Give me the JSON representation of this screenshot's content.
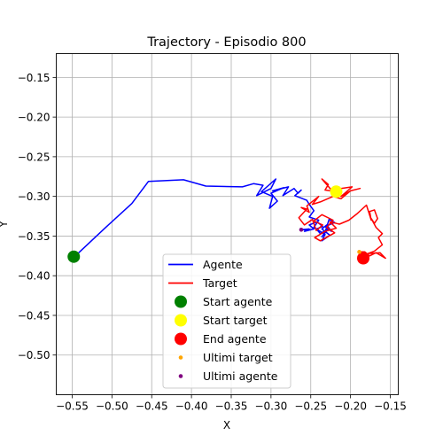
{
  "chart_data": {
    "type": "line",
    "title": "Trajectory - Episodio 800",
    "xlabel": "X",
    "ylabel": "Y",
    "xlim": [
      -0.57,
      -0.14
    ],
    "ylim": [
      -0.55,
      -0.12
    ],
    "xticks": [
      -0.55,
      -0.5,
      -0.45,
      -0.4,
      -0.35,
      -0.3,
      -0.25,
      -0.2,
      -0.15
    ],
    "xtick_labels": [
      "−0.55",
      "−0.50",
      "−0.45",
      "−0.40",
      "−0.35",
      "−0.30",
      "−0.25",
      "−0.20",
      "−0.15"
    ],
    "yticks": [
      -0.15,
      -0.2,
      -0.25,
      -0.3,
      -0.35,
      -0.4,
      -0.45,
      -0.5
    ],
    "ytick_labels": [
      "−0.15",
      "−0.20",
      "−0.25",
      "−0.30",
      "−0.35",
      "−0.40",
      "−0.45",
      "−0.50"
    ],
    "grid": true,
    "legend_position": "bottom-center",
    "series": [
      {
        "name": "Agente",
        "color": "#0000ff",
        "x": [
          -0.548,
          -0.51,
          -0.475,
          -0.454,
          -0.41,
          -0.382,
          -0.336,
          -0.322,
          -0.31,
          -0.318,
          -0.306,
          -0.3,
          -0.294,
          -0.312,
          -0.298,
          -0.302,
          -0.292,
          -0.3,
          -0.284,
          -0.298,
          -0.278,
          -0.285,
          -0.271,
          -0.266,
          -0.262,
          -0.27,
          -0.255,
          -0.252,
          -0.246,
          -0.252,
          -0.24,
          -0.246,
          -0.232,
          -0.236,
          -0.226,
          -0.236,
          -0.23,
          -0.224,
          -0.232,
          -0.22,
          -0.227,
          -0.232,
          -0.236,
          -0.228,
          -0.238,
          -0.243,
          -0.235,
          -0.242,
          -0.252,
          -0.246,
          -0.258,
          -0.252,
          -0.262
        ],
        "y": [
          -0.377,
          -0.341,
          -0.309,
          -0.281,
          -0.279,
          -0.287,
          -0.288,
          -0.284,
          -0.286,
          -0.299,
          -0.293,
          -0.29,
          -0.278,
          -0.294,
          -0.3,
          -0.315,
          -0.306,
          -0.296,
          -0.289,
          -0.293,
          -0.288,
          -0.299,
          -0.29,
          -0.296,
          -0.292,
          -0.299,
          -0.305,
          -0.31,
          -0.318,
          -0.326,
          -0.33,
          -0.339,
          -0.348,
          -0.356,
          -0.349,
          -0.341,
          -0.336,
          -0.344,
          -0.338,
          -0.333,
          -0.329,
          -0.345,
          -0.351,
          -0.341,
          -0.347,
          -0.341,
          -0.338,
          -0.332,
          -0.336,
          -0.341,
          -0.344,
          -0.341,
          -0.342
        ]
      },
      {
        "name": "Target",
        "color": "#ff0000",
        "x": [
          -0.218,
          -0.232,
          -0.228,
          -0.236,
          -0.224,
          -0.212,
          -0.198,
          -0.212,
          -0.2,
          -0.188,
          -0.2,
          -0.212,
          -0.222,
          -0.238,
          -0.248,
          -0.24,
          -0.255,
          -0.252,
          -0.262,
          -0.255,
          -0.265,
          -0.258,
          -0.248,
          -0.243,
          -0.235,
          -0.246,
          -0.236,
          -0.222,
          -0.23,
          -0.22,
          -0.238,
          -0.245,
          -0.232,
          -0.218,
          -0.226,
          -0.214,
          -0.202,
          -0.192,
          -0.18,
          -0.174,
          -0.176,
          -0.17,
          -0.166,
          -0.17,
          -0.174,
          -0.168,
          -0.16,
          -0.165,
          -0.16,
          -0.17,
          -0.178,
          -0.163,
          -0.156,
          -0.168,
          -0.176,
          -0.182,
          -0.188
        ],
        "y": [
          -0.294,
          -0.292,
          -0.285,
          -0.278,
          -0.292,
          -0.29,
          -0.288,
          -0.3,
          -0.293,
          -0.29,
          -0.293,
          -0.303,
          -0.3,
          -0.307,
          -0.31,
          -0.3,
          -0.312,
          -0.32,
          -0.314,
          -0.316,
          -0.327,
          -0.336,
          -0.329,
          -0.343,
          -0.336,
          -0.331,
          -0.323,
          -0.33,
          -0.339,
          -0.346,
          -0.356,
          -0.352,
          -0.344,
          -0.34,
          -0.332,
          -0.335,
          -0.33,
          -0.322,
          -0.311,
          -0.33,
          -0.319,
          -0.317,
          -0.328,
          -0.334,
          -0.328,
          -0.339,
          -0.347,
          -0.352,
          -0.361,
          -0.369,
          -0.372,
          -0.371,
          -0.378,
          -0.371,
          -0.375,
          -0.37,
          -0.37
        ]
      }
    ],
    "markers": [
      {
        "name": "Start agente",
        "color": "#008000",
        "x": -0.548,
        "y": -0.376,
        "size": "large"
      },
      {
        "name": "Start target",
        "color": "#ffff00",
        "x": -0.218,
        "y": -0.294,
        "size": "large"
      },
      {
        "name": "End agente",
        "color": "#ff0000",
        "x": -0.184,
        "y": -0.378,
        "size": "large"
      },
      {
        "name": "Ultimi target",
        "color": "#ffa500",
        "x": -0.189,
        "y": -0.37,
        "size": "small"
      },
      {
        "name": "Ultimi agente",
        "color": "#800080",
        "x": -0.262,
        "y": -0.342,
        "size": "small"
      }
    ],
    "legend": [
      {
        "label": "Agente",
        "kind": "line",
        "color": "#0000ff"
      },
      {
        "label": "Target",
        "kind": "line",
        "color": "#ff0000"
      },
      {
        "label": "Start agente",
        "kind": "marker-large",
        "color": "#008000"
      },
      {
        "label": "Start target",
        "kind": "marker-large",
        "color": "#ffff00"
      },
      {
        "label": "End agente",
        "kind": "marker-large",
        "color": "#ff0000"
      },
      {
        "label": "Ultimi target",
        "kind": "marker-small",
        "color": "#ffa500"
      },
      {
        "label": "Ultimi agente",
        "kind": "marker-small",
        "color": "#800080"
      }
    ]
  }
}
